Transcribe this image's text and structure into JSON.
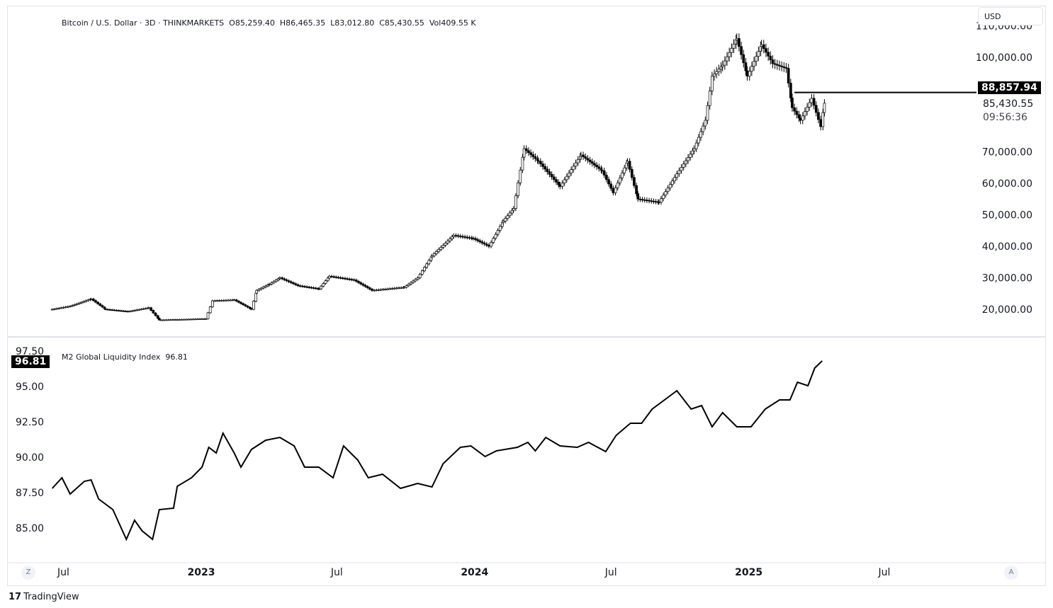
{
  "header": {
    "symbol": "Bitcoin / U.S. Dollar · 3D · THINKMARKETS",
    "open": "O85,259.40",
    "high": "H86,465.35",
    "low": "L83,012.80",
    "close": "C85,430.55",
    "volume": "Vol409.55 K",
    "currency_button": "USD"
  },
  "price_pane": {
    "line_label": "88,857.94",
    "last_price": "85,430.55",
    "countdown": "09:56:36"
  },
  "indicator_pane": {
    "name": "M2 Global Liquidity Index",
    "value": "96.81",
    "value_tag": "96.81"
  },
  "time_axis": {
    "ticks": [
      {
        "label": "Jul",
        "date": "2022-07-01",
        "bold": false
      },
      {
        "label": "2023",
        "date": "2023-01-01",
        "bold": true
      },
      {
        "label": "Jul",
        "date": "2023-07-01",
        "bold": false
      },
      {
        "label": "2024",
        "date": "2024-01-01",
        "bold": true
      },
      {
        "label": "Jul",
        "date": "2024-07-01",
        "bold": false
      },
      {
        "label": "2025",
        "date": "2025-01-01",
        "bold": true
      },
      {
        "label": "Jul",
        "date": "2025-07-01",
        "bold": false
      }
    ],
    "left_button": "Z",
    "right_button": "A"
  },
  "branding": {
    "logo": "TV",
    "name": "TradingView"
  },
  "colors": {
    "up": "#ffffff",
    "down": "#000000",
    "up_accent": "#4caf50",
    "line": "#000000",
    "grid_border": "#e0e3eb"
  },
  "chart_data": [
    {
      "type": "candlestick",
      "title": "Bitcoin / U.S. Dollar · 3D · THINKMARKETS",
      "y_ticks": [
        "110,000.00",
        "100,000.00",
        "70,000.00",
        "60,000.00",
        "50,000.00",
        "40,000.00",
        "30,000.00",
        "20,000.00"
      ],
      "y_tick_values": [
        110000,
        100000,
        70000,
        60000,
        50000,
        40000,
        30000,
        20000
      ],
      "ylim": [
        15000,
        112000
      ],
      "horizontal_line": 88857.94,
      "horizontal_line_start": "2025-03-03",
      "grid": false,
      "closes": [
        [
          "2022-06-16",
          20000
        ],
        [
          "2022-07-10",
          21000
        ],
        [
          "2022-08-07",
          23300
        ],
        [
          "2022-08-26",
          20000
        ],
        [
          "2022-09-25",
          19300
        ],
        [
          "2022-10-23",
          20500
        ],
        [
          "2022-11-06",
          16600
        ],
        [
          "2022-12-09",
          16800
        ],
        [
          "2023-01-07",
          17000
        ],
        [
          "2023-01-16",
          22700
        ],
        [
          "2023-02-14",
          23000
        ],
        [
          "2023-03-09",
          20000
        ],
        [
          "2023-03-16",
          26000
        ],
        [
          "2023-04-02",
          28000
        ],
        [
          "2023-04-16",
          30000
        ],
        [
          "2023-05-10",
          27500
        ],
        [
          "2023-06-07",
          26500
        ],
        [
          "2023-06-21",
          30500
        ],
        [
          "2023-07-24",
          29300
        ],
        [
          "2023-08-17",
          26000
        ],
        [
          "2023-09-29",
          27000
        ],
        [
          "2023-10-17",
          30000
        ],
        [
          "2023-11-05",
          37000
        ],
        [
          "2023-12-04",
          43500
        ],
        [
          "2023-12-30",
          42500
        ],
        [
          "2024-01-20",
          40000
        ],
        [
          "2024-02-08",
          48000
        ],
        [
          "2024-02-22",
          52000
        ],
        [
          "2024-03-07",
          71000
        ],
        [
          "2024-03-26",
          67000
        ],
        [
          "2024-04-24",
          59000
        ],
        [
          "2024-05-22",
          69000
        ],
        [
          "2024-06-19",
          64000
        ],
        [
          "2024-07-04",
          57000
        ],
        [
          "2024-07-23",
          67000
        ],
        [
          "2024-08-06",
          55000
        ],
        [
          "2024-09-03",
          54000
        ],
        [
          "2024-09-27",
          63000
        ],
        [
          "2024-10-20",
          71000
        ],
        [
          "2024-11-04",
          80000
        ],
        [
          "2024-11-13",
          94000
        ],
        [
          "2024-11-27",
          97500
        ],
        [
          "2024-12-16",
          106000
        ],
        [
          "2024-12-30",
          94000
        ],
        [
          "2025-01-18",
          104000
        ],
        [
          "2025-02-02",
          98000
        ],
        [
          "2025-02-20",
          96500
        ],
        [
          "2025-02-28",
          84000
        ],
        [
          "2025-03-11",
          80000
        ],
        [
          "2025-03-26",
          87000
        ],
        [
          "2025-04-07",
          78000
        ],
        [
          "2025-04-12",
          85430.55
        ]
      ]
    },
    {
      "type": "line",
      "series": [
        {
          "name": "M2 Global Liquidity Index"
        }
      ],
      "y_ticks": [
        "97.50",
        "95.00",
        "92.50",
        "90.00",
        "87.50",
        "85.00"
      ],
      "y_tick_values": [
        97.5,
        95,
        92.5,
        90,
        87.5,
        85
      ],
      "ylim": [
        83.5,
        98
      ],
      "grid": false,
      "points": [
        [
          "2022-06-16",
          87.8
        ],
        [
          "2022-06-29",
          88.55
        ],
        [
          "2022-07-10",
          87.4
        ],
        [
          "2022-07-29",
          88.3
        ],
        [
          "2022-08-07",
          88.4
        ],
        [
          "2022-08-17",
          87.05
        ],
        [
          "2022-09-05",
          86.3
        ],
        [
          "2022-09-23",
          84.2
        ],
        [
          "2022-10-04",
          85.55
        ],
        [
          "2022-10-14",
          84.8
        ],
        [
          "2022-10-28",
          84.2
        ],
        [
          "2022-11-06",
          86.3
        ],
        [
          "2022-11-25",
          86.4
        ],
        [
          "2022-11-30",
          87.95
        ],
        [
          "2022-12-19",
          88.55
        ],
        [
          "2023-01-02",
          89.3
        ],
        [
          "2023-01-11",
          90.7
        ],
        [
          "2023-01-21",
          90.3
        ],
        [
          "2023-01-30",
          91.7
        ],
        [
          "2023-02-14",
          90.3
        ],
        [
          "2023-02-23",
          89.3
        ],
        [
          "2023-03-09",
          90.55
        ],
        [
          "2023-03-28",
          91.2
        ],
        [
          "2023-04-16",
          91.4
        ],
        [
          "2023-05-05",
          90.8
        ],
        [
          "2023-05-19",
          89.3
        ],
        [
          "2023-06-07",
          89.3
        ],
        [
          "2023-06-26",
          88.55
        ],
        [
          "2023-07-10",
          90.8
        ],
        [
          "2023-07-29",
          89.8
        ],
        [
          "2023-08-12",
          88.55
        ],
        [
          "2023-08-31",
          88.8
        ],
        [
          "2023-09-24",
          87.8
        ],
        [
          "2023-10-17",
          88.15
        ],
        [
          "2023-11-05",
          87.9
        ],
        [
          "2023-11-20",
          89.55
        ],
        [
          "2023-12-13",
          90.7
        ],
        [
          "2023-12-27",
          90.8
        ],
        [
          "2024-01-15",
          90.05
        ],
        [
          "2024-01-30",
          90.45
        ],
        [
          "2024-02-27",
          90.7
        ],
        [
          "2024-03-12",
          91.05
        ],
        [
          "2024-03-22",
          90.45
        ],
        [
          "2024-04-05",
          91.4
        ],
        [
          "2024-04-24",
          90.8
        ],
        [
          "2024-05-17",
          90.7
        ],
        [
          "2024-06-01",
          91.05
        ],
        [
          "2024-06-24",
          90.4
        ],
        [
          "2024-07-08",
          91.55
        ],
        [
          "2024-07-27",
          92.4
        ],
        [
          "2024-08-11",
          92.4
        ],
        [
          "2024-08-25",
          93.4
        ],
        [
          "2024-09-08",
          93.95
        ],
        [
          "2024-09-27",
          94.7
        ],
        [
          "2024-10-16",
          93.4
        ],
        [
          "2024-10-30",
          93.65
        ],
        [
          "2024-11-13",
          92.15
        ],
        [
          "2024-11-27",
          93.15
        ],
        [
          "2024-12-16",
          92.15
        ],
        [
          "2025-01-04",
          92.15
        ],
        [
          "2025-01-23",
          93.4
        ],
        [
          "2025-02-11",
          94.05
        ],
        [
          "2025-02-25",
          94.05
        ],
        [
          "2025-03-07",
          95.3
        ],
        [
          "2025-03-21",
          95.05
        ],
        [
          "2025-03-30",
          96.3
        ],
        [
          "2025-04-09",
          96.81
        ]
      ]
    }
  ]
}
